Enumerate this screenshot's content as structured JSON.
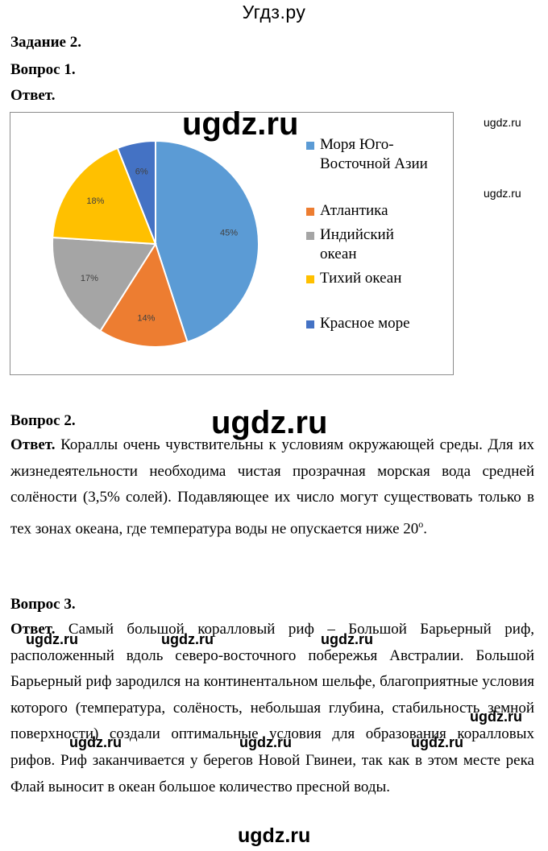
{
  "site_title": "Угдз.ру",
  "watermarks": {
    "big": "ugdz.ru",
    "small": "ugdz.ru"
  },
  "task": "Задание 2.",
  "q1": {
    "title": "Вопрос 1.",
    "answer_label": "Ответ."
  },
  "chart_data": {
    "type": "pie",
    "categories": [
      "Моря Юго-Восточной Азии",
      "Атлантика",
      "Индийский океан",
      "Тихий океан",
      "Красное море"
    ],
    "values": [
      45,
      14,
      17,
      18,
      6
    ],
    "value_labels": [
      "45%",
      "14%",
      "17%",
      "18%",
      "6%"
    ],
    "legend_lines": [
      [
        "Моря Юго-",
        "Восточной Азии"
      ],
      [
        "Атлантика"
      ],
      [
        "Индийский",
        "океан"
      ],
      [
        "Тихий океан"
      ],
      [
        "Красное море"
      ]
    ],
    "colors": [
      "#5B9BD5",
      "#ED7D31",
      "#A5A5A5",
      "#FFC000",
      "#4472C4"
    ],
    "legend_position": "right",
    "start_angle_deg": 0,
    "direction": "clockwise"
  },
  "q2": {
    "title": "Вопрос 2.",
    "answer_label": "Ответ.",
    "answer_text": "Кораллы очень чувствительны к условиям окружающей среды. Для их жизнедеятельности необходима чистая прозрачная морская вода средней солёности (3,5% солей). Подавляющее их число могут существовать только в тех зонах океана, где температура воды не опускается ниже 20",
    "degree": "o",
    "answer_end": "."
  },
  "q3": {
    "title": "Вопрос 3.",
    "answer_label": "Ответ.",
    "answer_text": "Самый большой коралловый риф – Большой Барьерный риф, расположенный вдоль северо-восточного побережья Австралии. Большой Барьерный риф зародился на континентальном шельфе, благоприятные условия которого (температура, солёность, небольшая глубина, стабильность земной поверхности) создали оптимальные условия для образования коралловых рифов. Риф заканчивается у берегов Новой Гвинеи, так как в этом месте река Флай выносит в океан большое количество пресной воды."
  }
}
